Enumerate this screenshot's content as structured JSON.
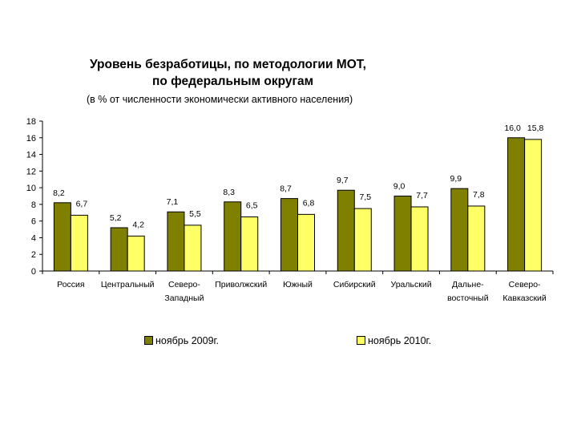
{
  "chart_data": {
    "type": "bar",
    "title_line1": "Уровень безработицы, по методологии МОТ,",
    "title_line2": "по федеральным округам",
    "subtitle": "(в % от численности экономически активного населения)",
    "ylim": [
      0,
      18
    ],
    "yticks": [
      "0",
      "2",
      "4",
      "6",
      "8",
      "10",
      "12",
      "14",
      "16",
      "18"
    ],
    "categories": [
      [
        "Россия"
      ],
      [
        "Центральный"
      ],
      [
        "Северо-",
        "Западный"
      ],
      [
        "Приволжский"
      ],
      [
        "Южный"
      ],
      [
        "Сибирский"
      ],
      [
        "Уральский"
      ],
      [
        "Дальне-",
        "восточный"
      ],
      [
        "Северо-",
        "Кавказский"
      ]
    ],
    "series": [
      {
        "name": "ноябрь 2009г.",
        "color": "#808000",
        "values": [
          8.2,
          5.2,
          7.1,
          8.3,
          8.7,
          9.7,
          9.0,
          9.9,
          16.0
        ],
        "labels": [
          "8,2",
          "5,2",
          "7,1",
          "8,3",
          "8,7",
          "9,7",
          "9,0",
          "9,9",
          "16,0"
        ]
      },
      {
        "name": "ноябрь 2010г.",
        "color": "#ffff66",
        "values": [
          6.7,
          4.2,
          5.5,
          6.5,
          6.8,
          7.5,
          7.7,
          7.8,
          15.8
        ],
        "labels": [
          "6,7",
          "4,2",
          "5,5",
          "6,5",
          "6,8",
          "7,5",
          "7,7",
          "7,8",
          "15,8"
        ]
      }
    ],
    "grid": false,
    "legend_position": "bottom"
  }
}
